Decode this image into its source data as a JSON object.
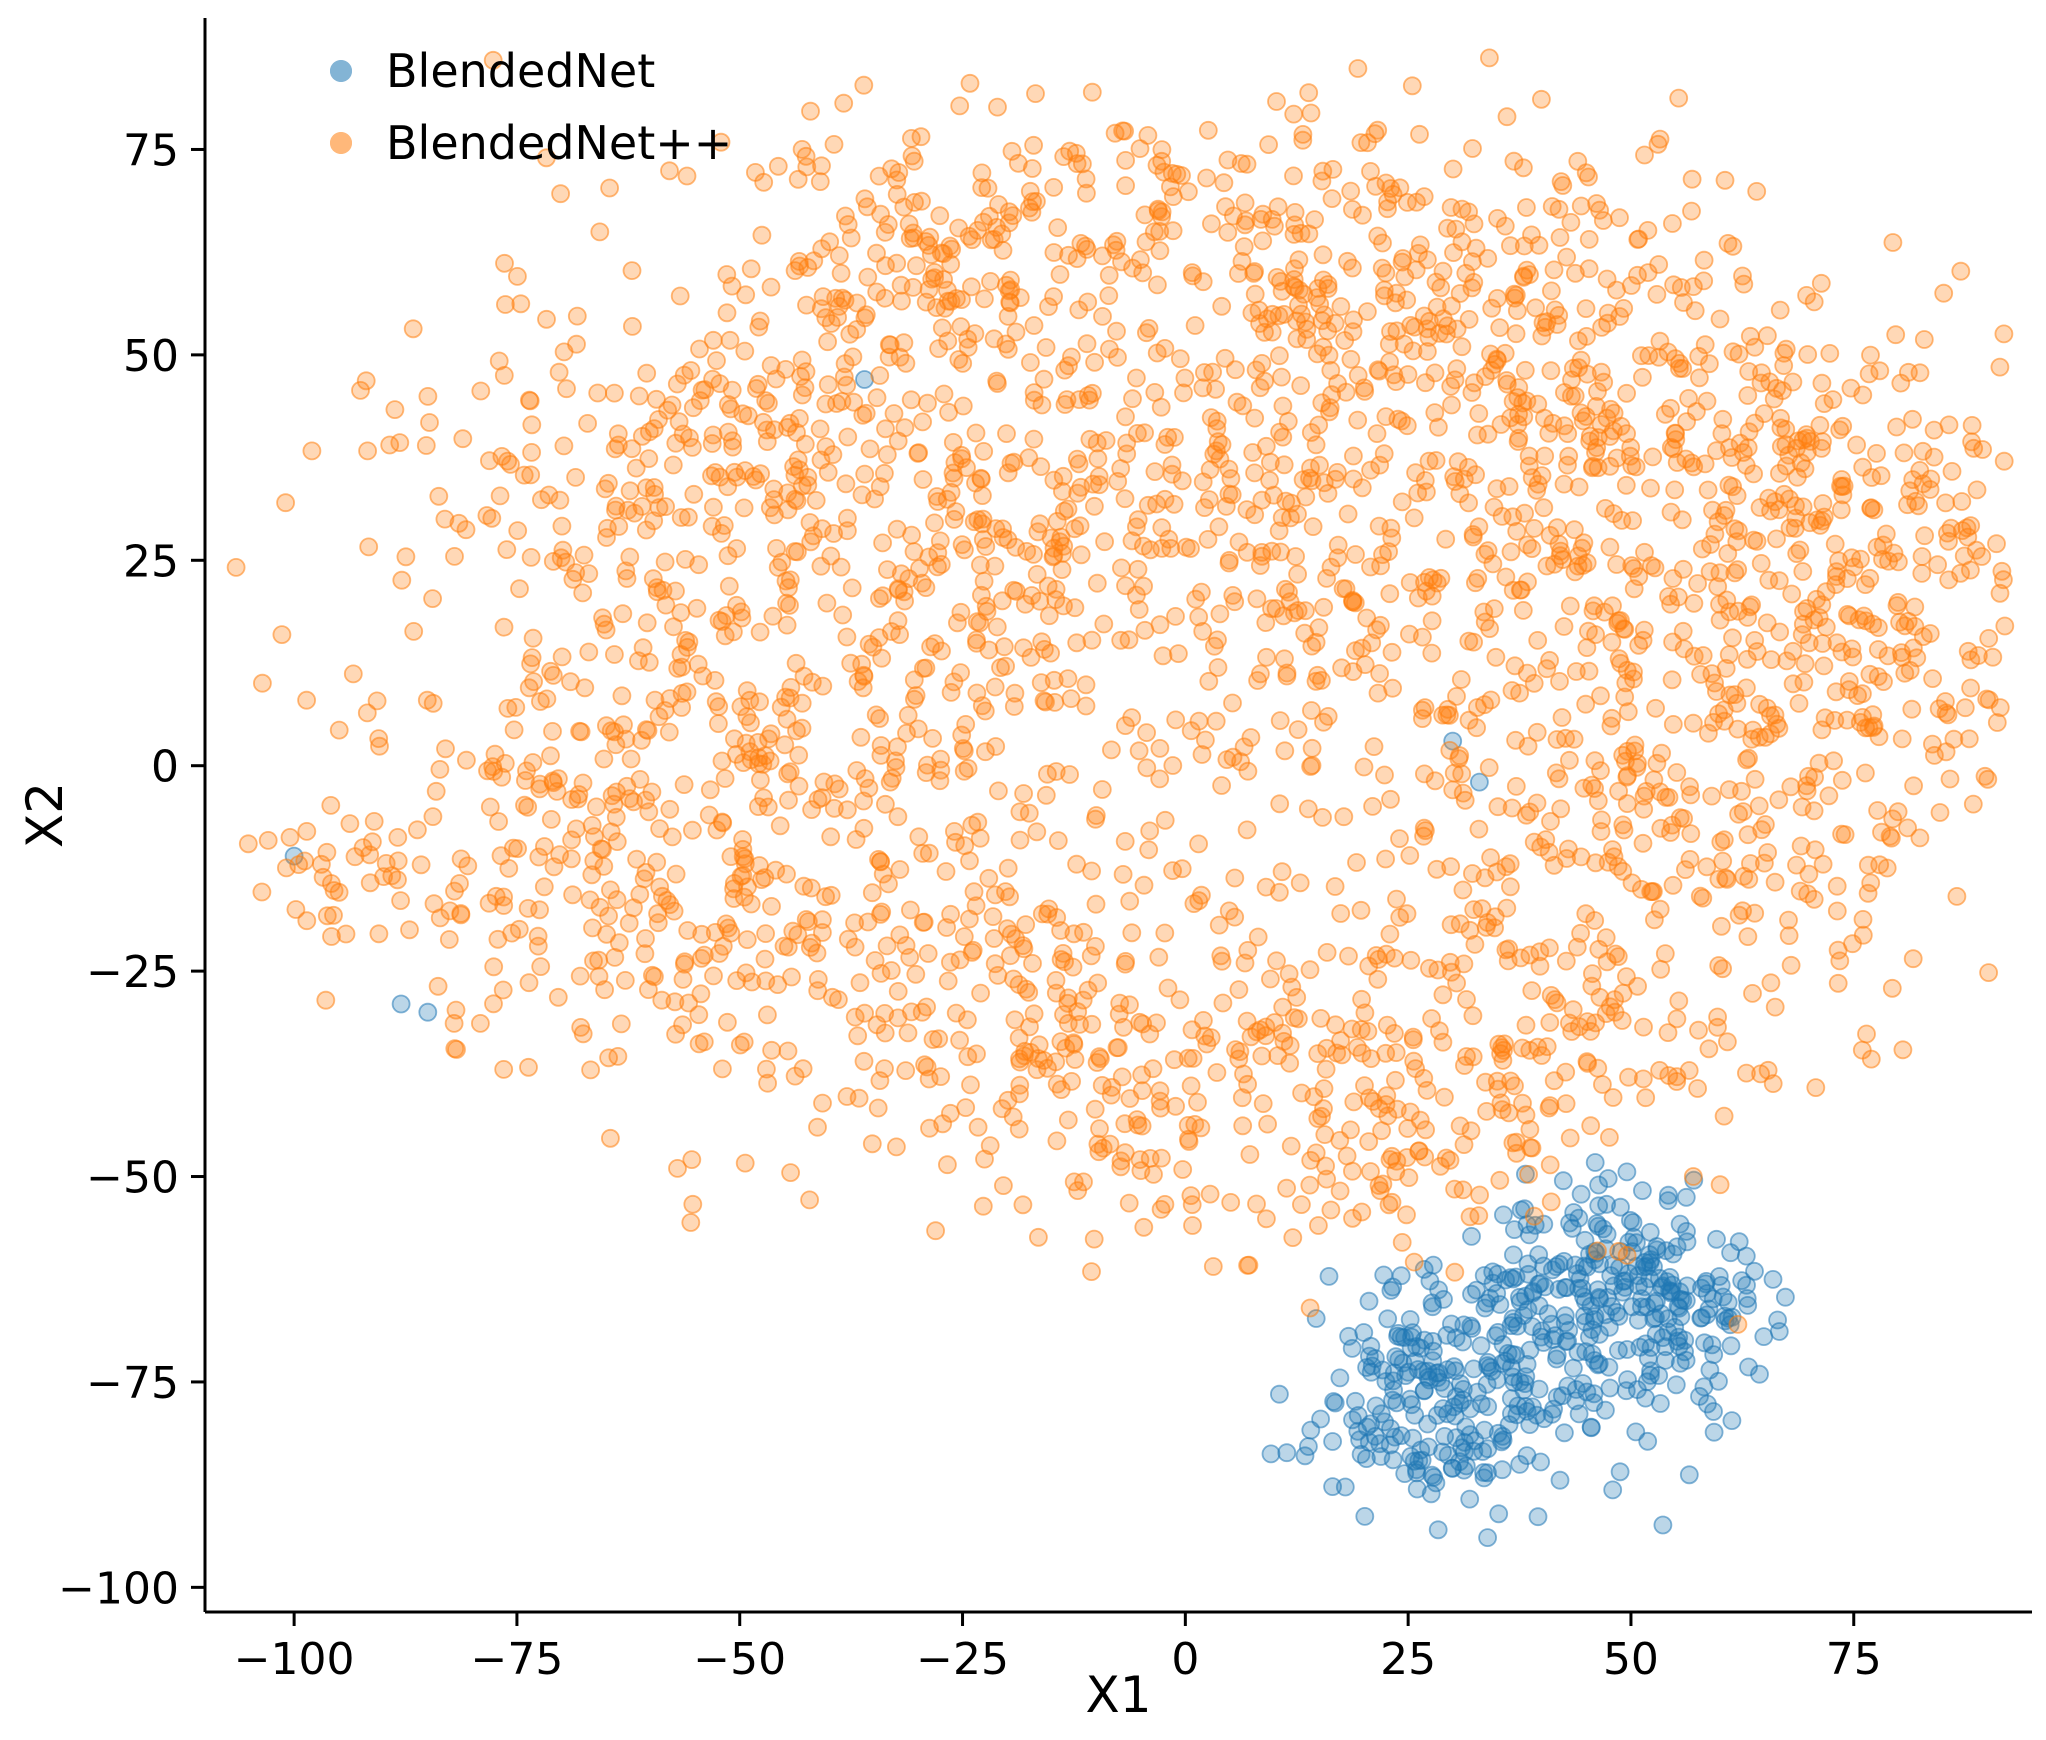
{
  "chart_data": {
    "type": "scatter",
    "title": "",
    "xlabel": "X1",
    "ylabel": "X2",
    "xlim": [
      -110,
      95
    ],
    "ylim": [
      -103,
      91
    ],
    "xticks": [
      -100,
      -75,
      -50,
      -25,
      0,
      25,
      50,
      75
    ],
    "yticks": [
      -100,
      -75,
      -50,
      -25,
      0,
      25,
      50,
      75
    ],
    "grid": false,
    "legend_position": "upper left",
    "legend": [
      {
        "label": "BlendedNet",
        "color": "#1f77b4"
      },
      {
        "label": "BlendedNet++",
        "color": "#ff7f0e"
      }
    ],
    "marker": {
      "radius": 8.5,
      "fill_opacity": 0.3,
      "edge_opacity": 0.55,
      "edge_width": 1.8
    },
    "seed": 42,
    "series": [
      {
        "name": "BlendedNet",
        "color": "#1f77b4",
        "bounds": {
          "xmin": 5,
          "xmax": 68,
          "ymin": -95,
          "ymax": -48
        },
        "clusters": [
          {
            "cx": 30,
            "cy": -76,
            "sx": 9,
            "sy": 7,
            "n": 250
          },
          {
            "cx": 46,
            "cy": -63,
            "sx": 9,
            "sy": 6,
            "n": 190
          },
          {
            "cx": 55,
            "cy": -70,
            "sx": 6,
            "sy": 6,
            "n": 70
          }
        ],
        "outliers": [
          [
            -100,
            -11
          ],
          [
            -88,
            -29
          ],
          [
            -85,
            -30
          ],
          [
            -36,
            47
          ],
          [
            30,
            3
          ],
          [
            33,
            -2
          ]
        ]
      },
      {
        "name": "BlendedNet++",
        "color": "#ff7f0e",
        "bounds": {
          "xmin": -107,
          "xmax": 92,
          "ymin": -62,
          "ymax": 87
        },
        "clusters": [
          {
            "cx": -8,
            "cy": 68,
            "sx": 28,
            "sy": 9,
            "n": 200
          },
          {
            "cx": 8,
            "cy": 48,
            "sx": 42,
            "sy": 11,
            "n": 260
          },
          {
            "cx": -18,
            "cy": 28,
            "sx": 42,
            "sy": 13,
            "n": 300
          },
          {
            "cx": 30,
            "cy": 28,
            "sx": 34,
            "sy": 13,
            "n": 240
          },
          {
            "cx": -45,
            "cy": 12,
            "sx": 22,
            "sy": 16,
            "n": 240
          },
          {
            "cx": 12,
            "cy": 2,
            "sx": 38,
            "sy": 16,
            "n": 300
          },
          {
            "cx": 58,
            "cy": 10,
            "sx": 16,
            "sy": 20,
            "n": 200
          },
          {
            "cx": 80,
            "cy": 18,
            "sx": 9,
            "sy": 13,
            "n": 110
          },
          {
            "cx": -68,
            "cy": -8,
            "sx": 11,
            "sy": 12,
            "n": 140
          },
          {
            "cx": -40,
            "cy": -24,
            "sx": 18,
            "sy": 11,
            "n": 160
          },
          {
            "cx": -10,
            "cy": -34,
            "sx": 22,
            "sy": 11,
            "n": 180
          },
          {
            "cx": 14,
            "cy": -45,
            "sx": 20,
            "sy": 9,
            "n": 150
          },
          {
            "cx": 38,
            "cy": -33,
            "sx": 14,
            "sy": 9,
            "n": 110
          },
          {
            "cx": -94,
            "cy": -13,
            "sx": 5,
            "sy": 4,
            "n": 40
          },
          {
            "cx": -58,
            "cy": 40,
            "sx": 11,
            "sy": 7,
            "n": 70
          },
          {
            "cx": -28,
            "cy": 55,
            "sx": 14,
            "sy": 8,
            "n": 80
          },
          {
            "cx": 52,
            "cy": -14,
            "sx": 14,
            "sy": 11,
            "n": 110
          },
          {
            "cx": 66,
            "cy": 38,
            "sx": 11,
            "sy": 8,
            "n": 70
          },
          {
            "cx": 25,
            "cy": 62,
            "sx": 20,
            "sy": 8,
            "n": 120
          },
          {
            "cx": 45,
            "cy": 48,
            "sx": 15,
            "sy": 9,
            "n": 90
          }
        ],
        "outliers": [
          [
            14,
            -66
          ],
          [
            62,
            -68
          ],
          [
            57,
            -50
          ],
          [
            60,
            -51
          ]
        ]
      }
    ]
  }
}
